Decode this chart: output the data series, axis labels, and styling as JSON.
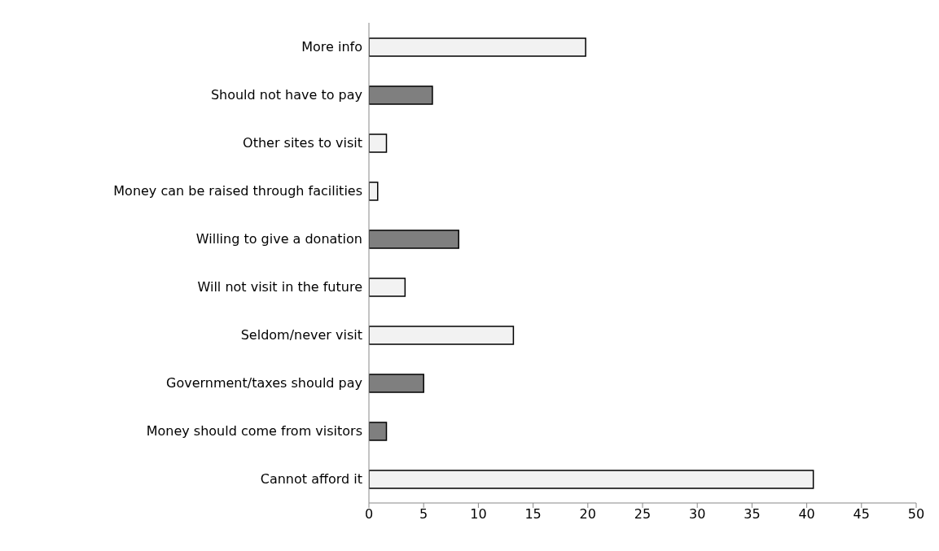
{
  "chart_data": {
    "type": "bar",
    "orientation": "horizontal",
    "categories": [
      "More info",
      "Should not have to pay",
      "Other sites to visit",
      "Money can be raised through facilities",
      "Willing to give a donation",
      "Will not visit in the future",
      "Seldom/never visit",
      "Government/taxes should pay",
      "Money should come from visitors",
      "Cannot afford it"
    ],
    "values": [
      19.8,
      5.8,
      1.6,
      0.8,
      8.2,
      3.3,
      13.2,
      5.0,
      1.6,
      40.6
    ],
    "colors": [
      "#f2f2f2",
      "#7f7f7f",
      "#f2f2f2",
      "#f2f2f2",
      "#7f7f7f",
      "#f2f2f2",
      "#f2f2f2",
      "#7f7f7f",
      "#7f7f7f",
      "#f2f2f2"
    ],
    "xlim": [
      0,
      50
    ],
    "xticks": [
      0,
      5,
      10,
      15,
      20,
      25,
      30,
      35,
      40,
      45,
      50
    ],
    "grid": false,
    "legend": false
  }
}
